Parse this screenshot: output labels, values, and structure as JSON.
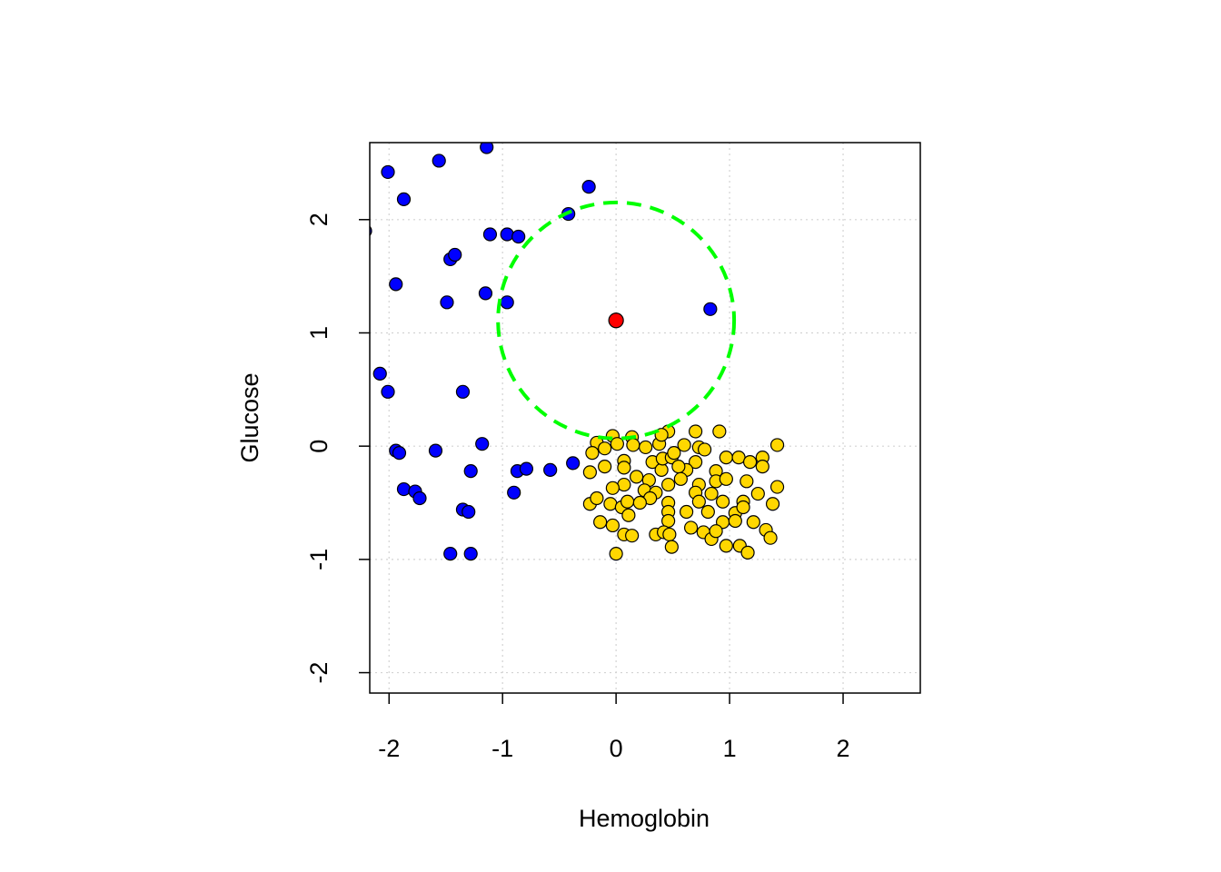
{
  "chart_data": {
    "type": "scatter",
    "title": "",
    "xlabel": "Hemoglobin",
    "ylabel": "Glucose",
    "xlim": [
      -2.17,
      2.68
    ],
    "ylim": [
      -2.18,
      2.68
    ],
    "grid": true,
    "x_ticks": [
      -2,
      -1,
      0,
      1,
      2
    ],
    "y_ticks": [
      -2,
      -1,
      0,
      1,
      2
    ],
    "x_tick_labels": [
      "-2",
      "-1",
      "0",
      "1",
      "2"
    ],
    "y_tick_labels": [
      "-2",
      "-1",
      "0",
      "1",
      "2"
    ],
    "colors": {
      "class_a": "#0000FF",
      "class_b": "#FFD700",
      "query": "#FF0000",
      "neighborhood": "#00FF00"
    },
    "series": [
      {
        "name": "class_a",
        "color": "#0000FF",
        "points": [
          [
            -1.14,
            2.64
          ],
          [
            -1.56,
            2.52
          ],
          [
            -2.01,
            2.42
          ],
          [
            -1.87,
            2.18
          ],
          [
            -0.24,
            2.29
          ],
          [
            -0.42,
            2.05
          ],
          [
            -2.21,
            1.9
          ],
          [
            -1.11,
            1.87
          ],
          [
            -0.96,
            1.87
          ],
          [
            -0.86,
            1.85
          ],
          [
            -1.46,
            1.65
          ],
          [
            -1.42,
            1.69
          ],
          [
            -1.94,
            1.43
          ],
          [
            -1.49,
            1.27
          ],
          [
            -1.15,
            1.35
          ],
          [
            -0.96,
            1.27
          ],
          [
            0.83,
            1.21
          ],
          [
            -2.08,
            0.64
          ],
          [
            -2.01,
            0.48
          ],
          [
            -1.35,
            0.48
          ],
          [
            -1.18,
            0.02
          ],
          [
            -1.94,
            -0.04
          ],
          [
            -1.91,
            -0.06
          ],
          [
            -1.59,
            -0.04
          ],
          [
            -1.28,
            -0.22
          ],
          [
            -0.87,
            -0.22
          ],
          [
            -0.79,
            -0.2
          ],
          [
            -0.58,
            -0.21
          ],
          [
            -0.38,
            -0.15
          ],
          [
            -1.87,
            -0.38
          ],
          [
            -1.77,
            -0.4
          ],
          [
            -1.73,
            -0.46
          ],
          [
            -0.9,
            -0.41
          ],
          [
            -1.35,
            -0.56
          ],
          [
            -1.3,
            -0.58
          ],
          [
            -1.46,
            -0.95
          ],
          [
            -1.28,
            -0.95
          ]
        ]
      },
      {
        "name": "class_b",
        "color": "#FFD700",
        "points": [
          [
            -0.03,
            0.09
          ],
          [
            0.14,
            0.08
          ],
          [
            0.46,
            0.13
          ],
          [
            0.7,
            0.13
          ],
          [
            0.91,
            0.13
          ],
          [
            1.42,
            0.01
          ],
          [
            -0.17,
            0.03
          ],
          [
            -0.1,
            -0.02
          ],
          [
            0.01,
            0.02
          ],
          [
            0.15,
            0.01
          ],
          [
            0.26,
            -0.01
          ],
          [
            0.38,
            0.02
          ],
          [
            0.4,
            0.1
          ],
          [
            -0.21,
            -0.06
          ],
          [
            -0.1,
            -0.18
          ],
          [
            0.07,
            -0.13
          ],
          [
            0.07,
            -0.19
          ],
          [
            -0.23,
            -0.23
          ],
          [
            0.32,
            -0.14
          ],
          [
            0.4,
            -0.21
          ],
          [
            0.41,
            -0.11
          ],
          [
            0.49,
            -0.1
          ],
          [
            0.51,
            -0.06
          ],
          [
            0.6,
            0.01
          ],
          [
            0.73,
            -0.01
          ],
          [
            0.78,
            -0.03
          ],
          [
            0.7,
            -0.14
          ],
          [
            0.62,
            -0.21
          ],
          [
            0.55,
            -0.18
          ],
          [
            0.97,
            -0.1
          ],
          [
            1.08,
            -0.1
          ],
          [
            1.18,
            -0.14
          ],
          [
            1.29,
            -0.1
          ],
          [
            1.29,
            -0.18
          ],
          [
            0.18,
            -0.27
          ],
          [
            0.29,
            -0.3
          ],
          [
            0.07,
            -0.34
          ],
          [
            0.46,
            -0.34
          ],
          [
            0.57,
            -0.29
          ],
          [
            0.88,
            -0.22
          ],
          [
            0.88,
            -0.31
          ],
          [
            0.97,
            -0.29
          ],
          [
            1.15,
            -0.31
          ],
          [
            1.42,
            -0.36
          ],
          [
            -0.03,
            -0.37
          ],
          [
            0.25,
            -0.39
          ],
          [
            0.35,
            -0.41
          ],
          [
            0.3,
            -0.46
          ],
          [
            0.73,
            -0.34
          ],
          [
            0.7,
            -0.41
          ],
          [
            0.84,
            -0.42
          ],
          [
            0.94,
            -0.49
          ],
          [
            1.25,
            -0.42
          ],
          [
            1.38,
            -0.51
          ],
          [
            -0.23,
            -0.51
          ],
          [
            -0.17,
            -0.46
          ],
          [
            -0.05,
            -0.51
          ],
          [
            0.05,
            -0.54
          ],
          [
            0.1,
            -0.49
          ],
          [
            0.21,
            -0.5
          ],
          [
            0.11,
            -0.61
          ],
          [
            0.46,
            -0.5
          ],
          [
            0.46,
            -0.58
          ],
          [
            0.62,
            -0.58
          ],
          [
            0.73,
            -0.49
          ],
          [
            0.81,
            -0.58
          ],
          [
            1.05,
            -0.59
          ],
          [
            1.12,
            -0.49
          ],
          [
            1.12,
            -0.54
          ],
          [
            -0.14,
            -0.67
          ],
          [
            -0.03,
            -0.7
          ],
          [
            0.46,
            -0.66
          ],
          [
            0.94,
            -0.67
          ],
          [
            1.05,
            -0.66
          ],
          [
            1.21,
            -0.67
          ],
          [
            0.07,
            -0.78
          ],
          [
            0.14,
            -0.79
          ],
          [
            0.35,
            -0.78
          ],
          [
            0.42,
            -0.76
          ],
          [
            0.47,
            -0.78
          ],
          [
            0.66,
            -0.72
          ],
          [
            0.77,
            -0.76
          ],
          [
            0.84,
            -0.82
          ],
          [
            0.88,
            -0.75
          ],
          [
            1.32,
            -0.74
          ],
          [
            1.36,
            -0.81
          ],
          [
            0.97,
            -0.88
          ],
          [
            1.09,
            -0.88
          ],
          [
            1.16,
            -0.94
          ],
          [
            0.49,
            -0.89
          ],
          [
            0.0,
            -0.95
          ]
        ]
      }
    ],
    "query_point": {
      "x": 0.0,
      "y": 1.11,
      "color": "#FF0000"
    },
    "neighborhood_circle": {
      "center": [
        0.0,
        1.11
      ],
      "radius": 1.04,
      "style": "dashed",
      "color": "#00FF00"
    }
  }
}
